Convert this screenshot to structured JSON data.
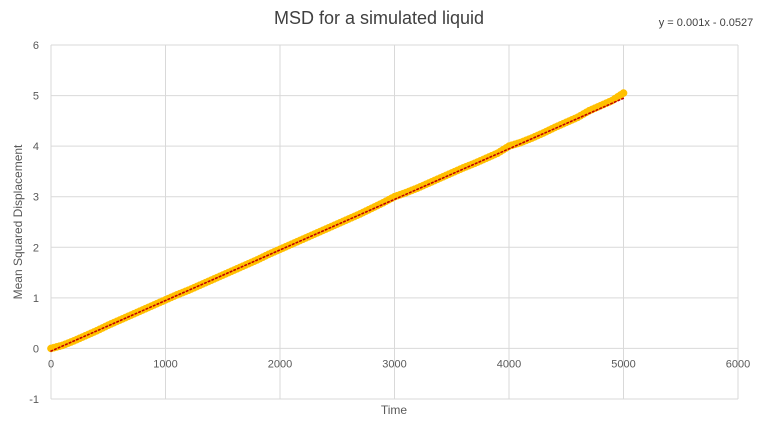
{
  "chart_data": {
    "type": "scatter",
    "title": "MSD for a simulated liquid",
    "xlabel": "Time",
    "ylabel": "Mean Squared Displacement",
    "xlim": [
      0,
      6000
    ],
    "ylim": [
      -1,
      6
    ],
    "x_ticks": [
      0,
      1000,
      2000,
      3000,
      4000,
      5000,
      6000
    ],
    "y_ticks": [
      -1,
      0,
      1,
      2,
      3,
      4,
      5,
      6
    ],
    "x_tick_labels": [
      "0",
      "1000",
      "2000",
      "3000",
      "4000",
      "5000",
      "6000"
    ],
    "y_tick_labels": [
      "-1",
      "0",
      "1",
      "2",
      "3",
      "4",
      "5",
      "6"
    ],
    "grid": true,
    "legend": "none",
    "series": [
      {
        "name": "MSD",
        "marker": "circle",
        "color": "#FFC000",
        "x": [
          0,
          100,
          200,
          300,
          400,
          500,
          600,
          700,
          800,
          900,
          1000,
          1100,
          1200,
          1300,
          1400,
          1500,
          1600,
          1700,
          1800,
          1900,
          2000,
          2100,
          2200,
          2300,
          2400,
          2500,
          2600,
          2700,
          2800,
          2900,
          3000,
          3100,
          3200,
          3300,
          3400,
          3500,
          3600,
          3700,
          3800,
          3900,
          4000,
          4100,
          4200,
          4300,
          4400,
          4500,
          4600,
          4700,
          4800,
          4900,
          5000
        ],
        "y": [
          0.0,
          0.06,
          0.15,
          0.25,
          0.35,
          0.46,
          0.56,
          0.66,
          0.76,
          0.86,
          0.96,
          1.06,
          1.15,
          1.25,
          1.35,
          1.45,
          1.55,
          1.65,
          1.75,
          1.86,
          1.96,
          2.06,
          2.16,
          2.26,
          2.36,
          2.46,
          2.56,
          2.66,
          2.77,
          2.88,
          3.0,
          3.08,
          3.17,
          3.27,
          3.37,
          3.47,
          3.57,
          3.66,
          3.76,
          3.86,
          4.0,
          4.07,
          4.16,
          4.26,
          4.37,
          4.47,
          4.57,
          4.7,
          4.8,
          4.9,
          5.05
        ]
      }
    ],
    "trendline": {
      "type": "linear",
      "slope": 0.001,
      "intercept": -0.0527,
      "color": "#C00000",
      "style": "dotted",
      "equation": "y = 0.001x - 0.0527"
    }
  },
  "colors": {
    "grid": "#D9D9D9",
    "axis_text": "#595959",
    "title_text": "#404040"
  }
}
